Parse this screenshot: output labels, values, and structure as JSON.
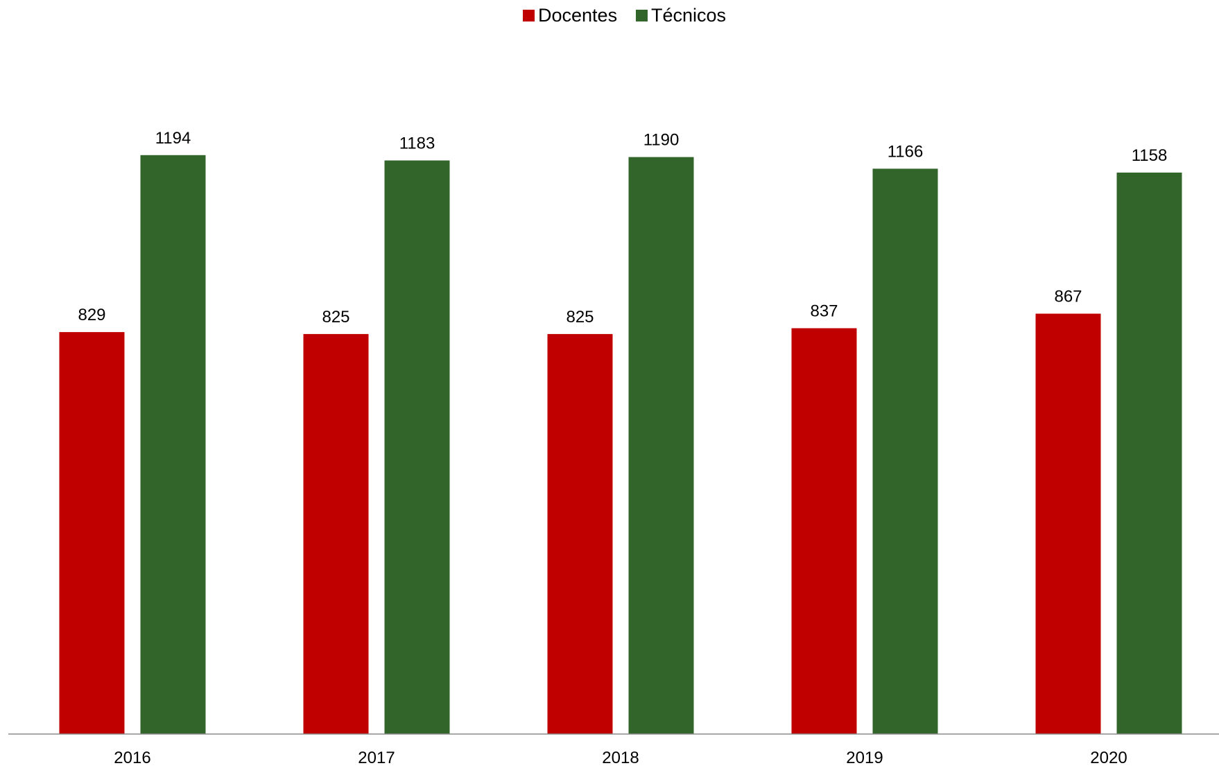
{
  "chart_data": {
    "type": "bar",
    "title": "",
    "xlabel": "",
    "ylabel": "",
    "categories": [
      "2016",
      "2017",
      "2018",
      "2019",
      "2020"
    ],
    "series": [
      {
        "name": "Docentes",
        "color": "#C00000",
        "values": [
          829,
          825,
          825,
          837,
          867
        ]
      },
      {
        "name": "Técnicos",
        "color": "#31652A",
        "values": [
          1194,
          1183,
          1190,
          1166,
          1158
        ]
      }
    ],
    "ylim": [
      0,
      1500
    ],
    "grid": false,
    "legend_position": "top-center",
    "data_labels": true
  }
}
